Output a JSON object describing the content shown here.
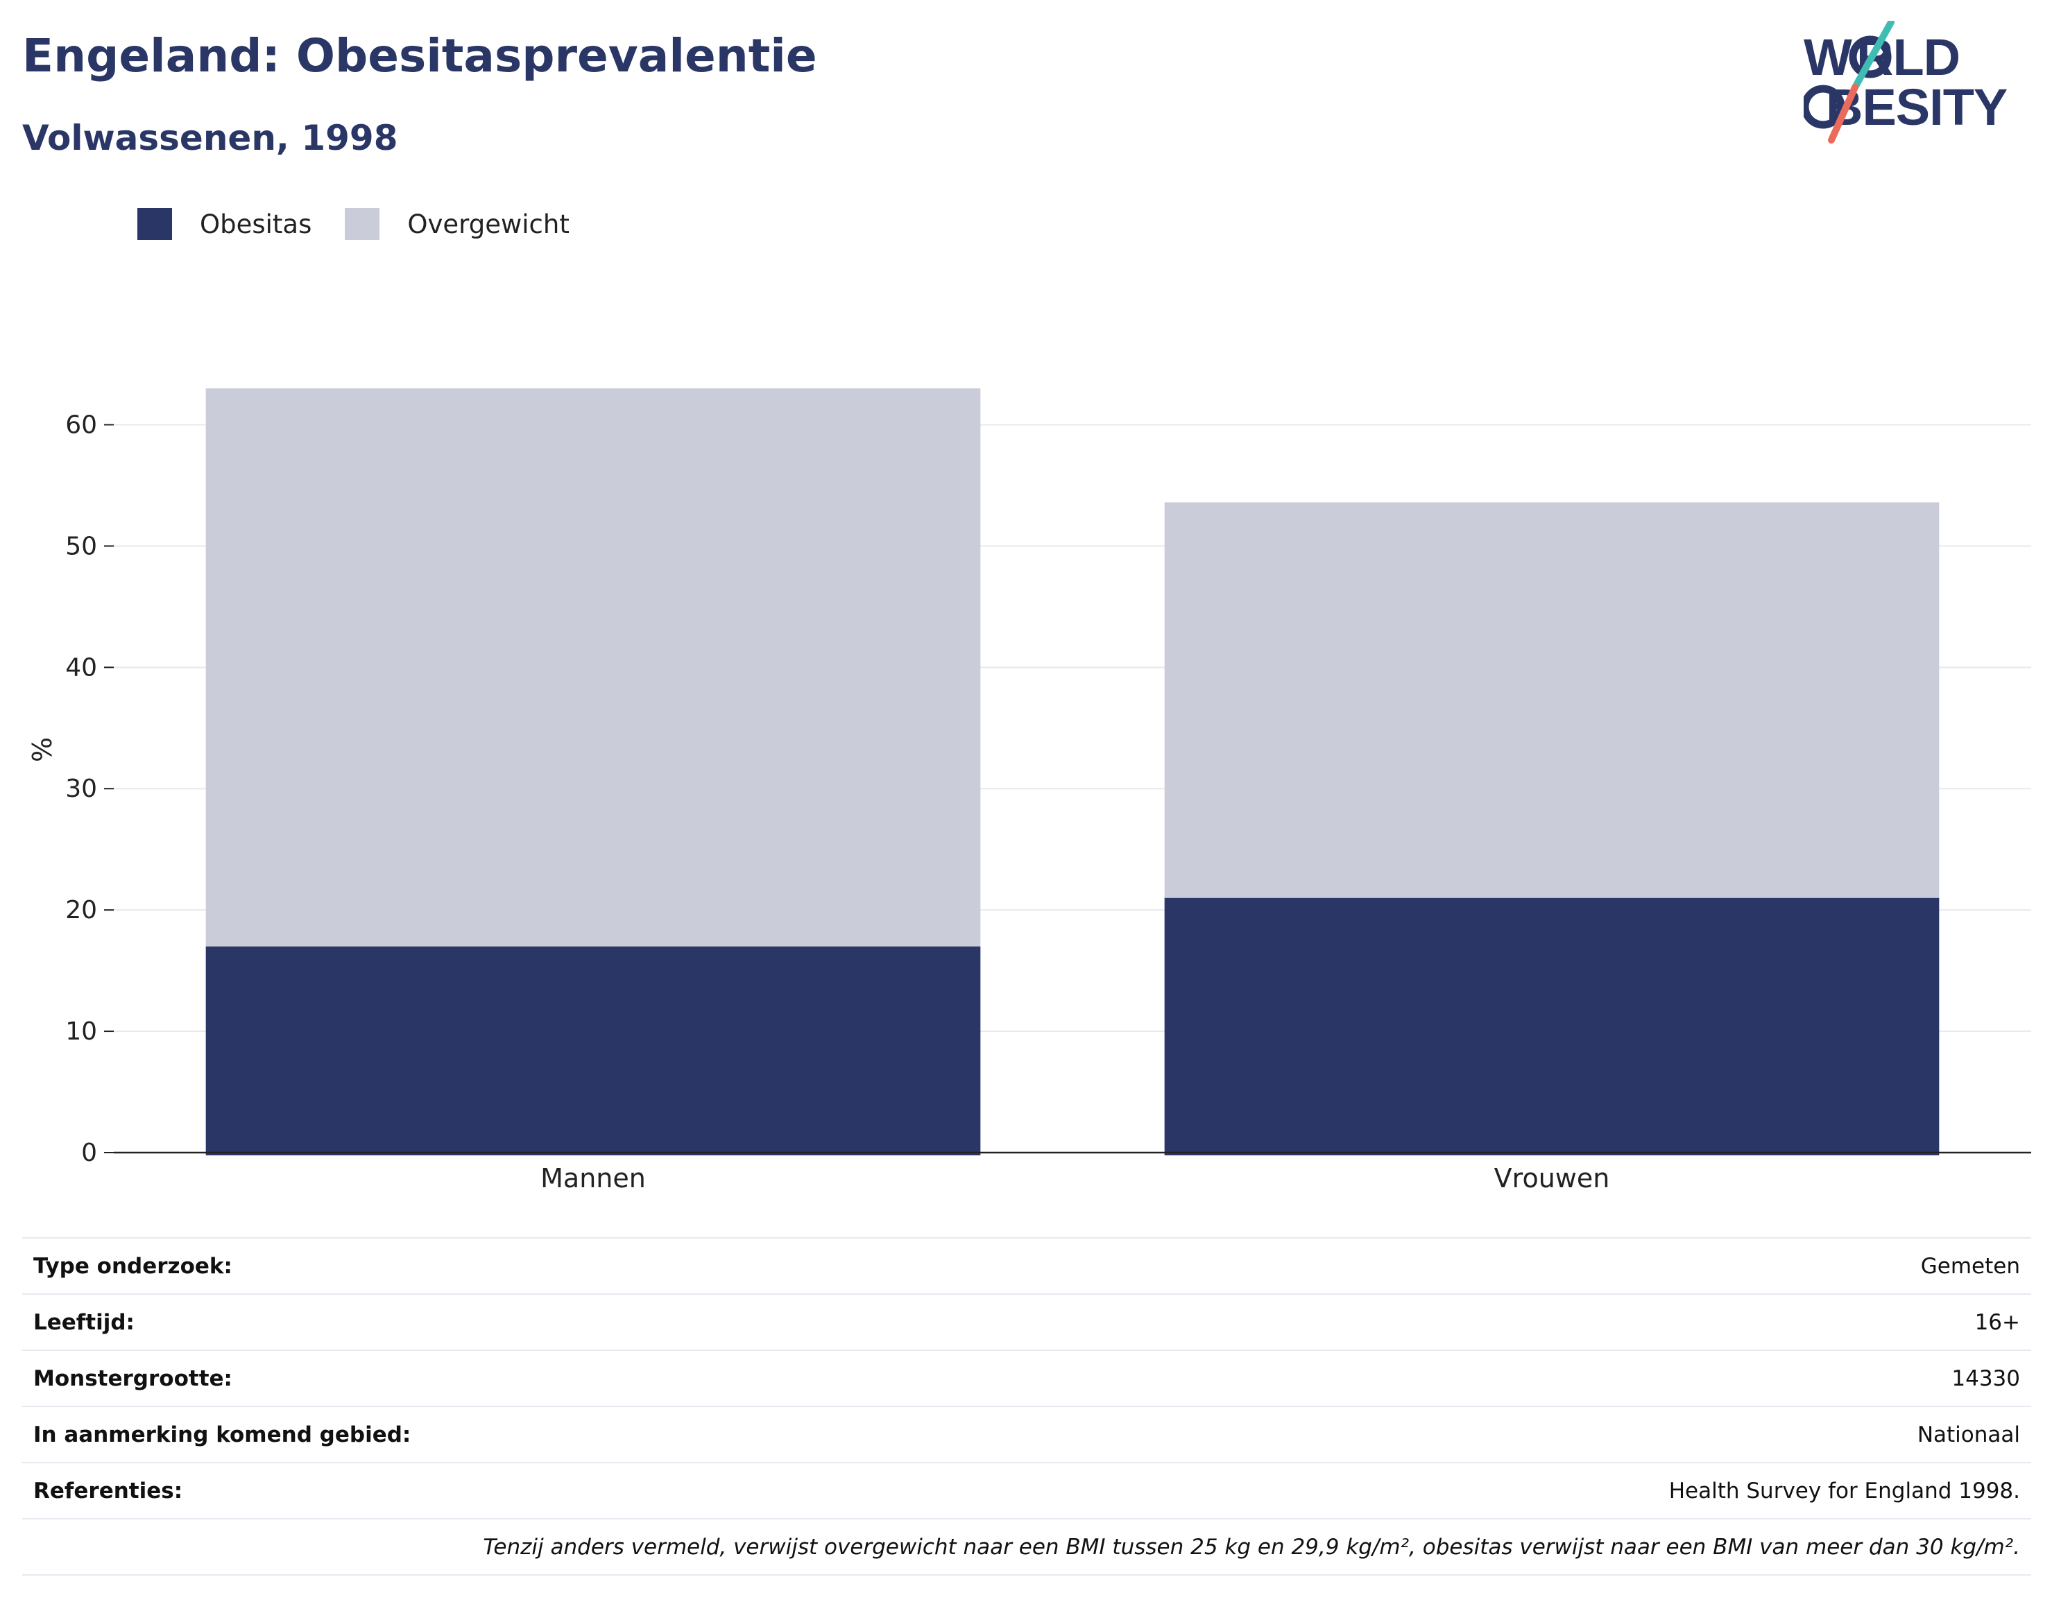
{
  "title": "Engeland: Obesitasprevalentie",
  "subtitle": "Volwassenen, 1998",
  "logo": {
    "line1": "WORLD",
    "line2": "OBESITY",
    "colors": {
      "text": "#2a3766",
      "teal": "#3fbdb5",
      "coral": "#ea6b5b"
    }
  },
  "legend": [
    {
      "label": "Obesitas",
      "color": "#2a3766"
    },
    {
      "label": "Overgewicht",
      "color": "#cacdd9"
    }
  ],
  "chart_data": {
    "type": "bar",
    "stacked": true,
    "categories": [
      "Mannen",
      "Vrouwen"
    ],
    "series": [
      {
        "name": "Obesitas",
        "values": [
          17,
          21
        ],
        "color": "#2a3766"
      },
      {
        "name": "Overgewicht",
        "values": [
          46,
          32.6
        ],
        "color": "#cacdd9"
      }
    ],
    "ylabel": "%",
    "ylim": [
      0,
      63
    ],
    "yticks": [
      0,
      10,
      20,
      30,
      40,
      50,
      60
    ],
    "grid": true,
    "legend_position": "top-left"
  },
  "info": [
    {
      "key": "Type onderzoek:",
      "value": "Gemeten"
    },
    {
      "key": "Leeftijd:",
      "value": "16+"
    },
    {
      "key": "Monstergrootte:",
      "value": "14330"
    },
    {
      "key": "In aanmerking komend gebied:",
      "value": "Nationaal"
    },
    {
      "key": "Referenties:",
      "value": "Health Survey for England 1998."
    }
  ],
  "footnote": "Tenzij anders vermeld, verwijst overgewicht naar een BMI tussen 25 kg en 29,9 kg/m², obesitas verwijst naar een BMI van meer dan 30 kg/m²."
}
